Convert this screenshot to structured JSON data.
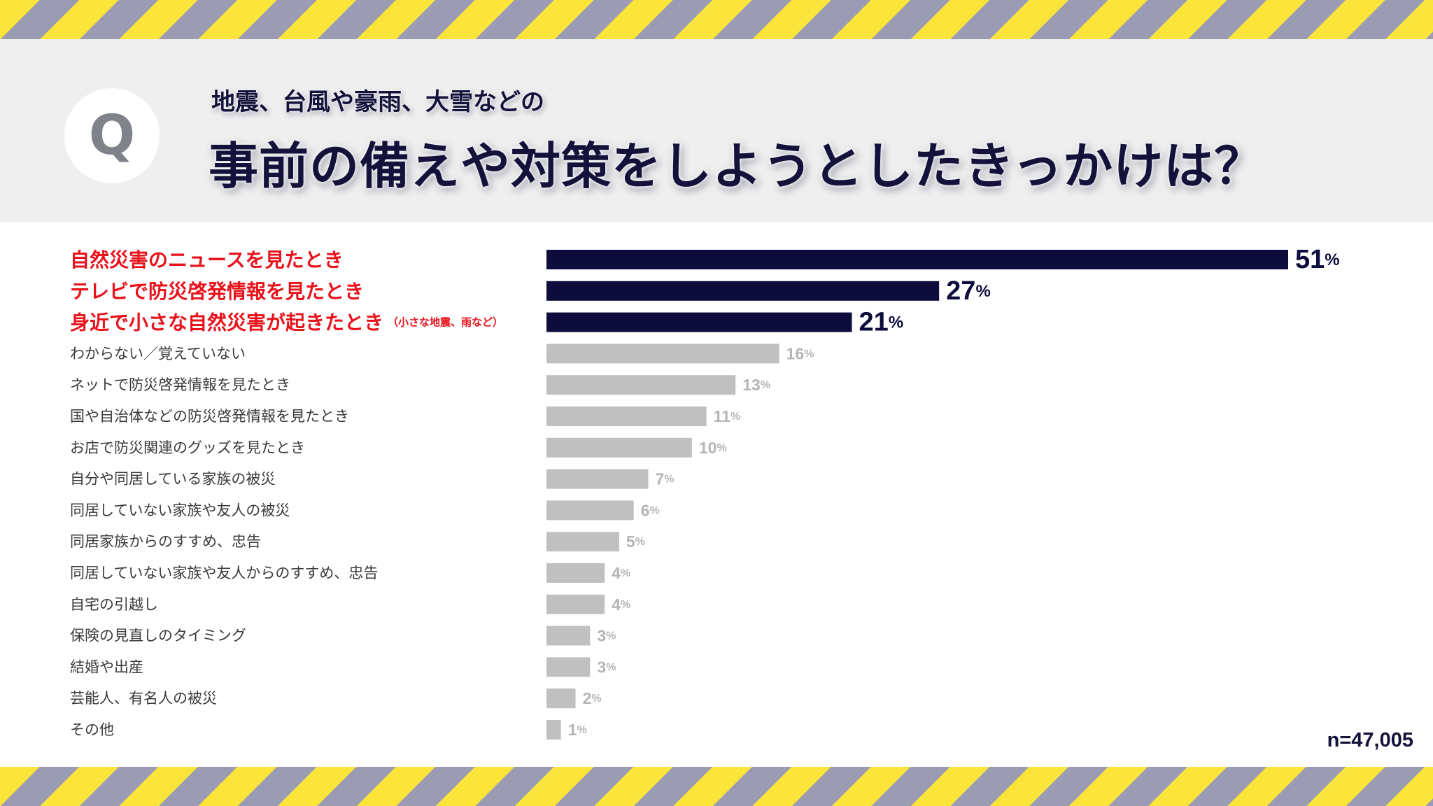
{
  "header": {
    "badge": "Q",
    "subtitle": "地震、台風や豪雨、大雪などの",
    "title": "事前の備えや対策をしようとしたきっかけは？"
  },
  "colors": {
    "highlight_bar": "#0d0c3c",
    "other_bar": "#c0c0c0",
    "highlight_label": "#e8121b",
    "other_label": "#3a3a3a",
    "highlight_value": "#0d0c3c",
    "other_value": "#b5b5b5",
    "stripe_yellow": "#fce53a",
    "stripe_gray": "#9b9cb3"
  },
  "chart_data": {
    "type": "bar",
    "orientation": "horizontal",
    "value_suffix": "%",
    "xlim": [
      0,
      51
    ],
    "grid": false,
    "categories": [
      {
        "label": "自然災害のニュースを見たとき",
        "note": "",
        "value": 51,
        "highlight": true
      },
      {
        "label": "テレビで防災啓発情報を見たとき",
        "note": "",
        "value": 27,
        "highlight": true
      },
      {
        "label": "身近で小さな自然災害が起きたとき",
        "note": "（小さな地震、雨など）",
        "value": 21,
        "highlight": true
      },
      {
        "label": "わからない／覚えていない",
        "note": "",
        "value": 16,
        "highlight": false
      },
      {
        "label": "ネットで防災啓発情報を見たとき",
        "note": "",
        "value": 13,
        "highlight": false
      },
      {
        "label": "国や自治体などの防災啓発情報を見たとき",
        "note": "",
        "value": 11,
        "highlight": false
      },
      {
        "label": "お店で防災関連のグッズを見たとき",
        "note": "",
        "value": 10,
        "highlight": false
      },
      {
        "label": "自分や同居している家族の被災",
        "note": "",
        "value": 7,
        "highlight": false
      },
      {
        "label": "同居していない家族や友人の被災",
        "note": "",
        "value": 6,
        "highlight": false
      },
      {
        "label": "同居家族からのすすめ、忠告",
        "note": "",
        "value": 5,
        "highlight": false
      },
      {
        "label": "同居していない家族や友人からのすすめ、忠告",
        "note": "",
        "value": 4,
        "highlight": false
      },
      {
        "label": "自宅の引越し",
        "note": "",
        "value": 4,
        "highlight": false
      },
      {
        "label": "保険の見直しのタイミング",
        "note": "",
        "value": 3,
        "highlight": false
      },
      {
        "label": "結婚や出産",
        "note": "",
        "value": 3,
        "highlight": false
      },
      {
        "label": "芸能人、有名人の被災",
        "note": "",
        "value": 2,
        "highlight": false
      },
      {
        "label": "その他",
        "note": "",
        "value": 1,
        "highlight": false
      }
    ],
    "sample_size": "n=47,005"
  }
}
